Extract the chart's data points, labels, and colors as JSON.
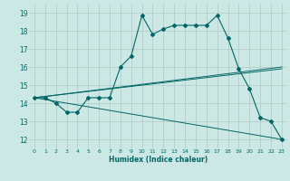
{
  "xlabel": "Humidex (Indice chaleur)",
  "background_color": "#cce8e4",
  "grid_color": "#b0c8c4",
  "line_color": "#006666",
  "xlim": [
    -0.5,
    23.5
  ],
  "ylim": [
    11.5,
    19.5
  ],
  "xticks": [
    0,
    1,
    2,
    3,
    4,
    5,
    6,
    7,
    8,
    9,
    10,
    11,
    12,
    13,
    14,
    15,
    16,
    17,
    18,
    19,
    20,
    21,
    22,
    23
  ],
  "yticks": [
    12,
    13,
    14,
    15,
    16,
    17,
    18,
    19
  ],
  "series": [
    {
      "x": [
        0,
        1,
        2,
        3,
        4,
        5,
        6,
        7,
        8,
        9,
        10,
        11,
        12,
        13,
        14,
        15,
        16,
        17,
        18,
        19,
        20,
        21,
        22,
        23
      ],
      "y": [
        14.3,
        14.3,
        14.0,
        13.5,
        13.5,
        14.3,
        14.3,
        14.3,
        16.0,
        16.6,
        18.85,
        17.8,
        18.1,
        18.3,
        18.3,
        18.3,
        18.3,
        18.85,
        17.6,
        15.9,
        14.8,
        13.2,
        13.0,
        12.0
      ],
      "marker": true
    },
    {
      "x": [
        0,
        23
      ],
      "y": [
        14.3,
        12.0
      ],
      "marker": false
    },
    {
      "x": [
        0,
        23
      ],
      "y": [
        14.3,
        16.0
      ],
      "marker": false
    },
    {
      "x": [
        0,
        23
      ],
      "y": [
        14.3,
        15.9
      ],
      "marker": false
    }
  ]
}
